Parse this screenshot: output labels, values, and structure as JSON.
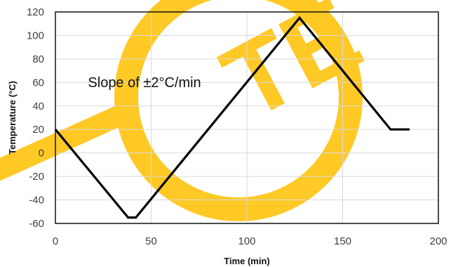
{
  "chart_data": {
    "type": "line",
    "title": "",
    "xlabel": "Time (min)",
    "ylabel": "Temperature (°C)",
    "xlim": [
      0,
      200
    ],
    "ylim": [
      -60,
      120
    ],
    "x_ticks": [
      0,
      50,
      100,
      150,
      200
    ],
    "y_ticks": [
      -60,
      -40,
      -20,
      0,
      20,
      40,
      60,
      80,
      100,
      120
    ],
    "grid": true,
    "legend": "none",
    "series": [
      {
        "x": [
          0,
          38,
          42,
          127.5,
          175,
          185
        ],
        "y": [
          20,
          -55,
          -55,
          115,
          20,
          20
        ]
      }
    ],
    "annotations": [
      {
        "text": "Slope of ±2°C/min",
        "x": 17,
        "y": 50
      }
    ],
    "colors": {
      "line": "#000000",
      "grid": "#d9d9d9",
      "watermark": "#ffc000"
    },
    "watermark": "TE"
  }
}
